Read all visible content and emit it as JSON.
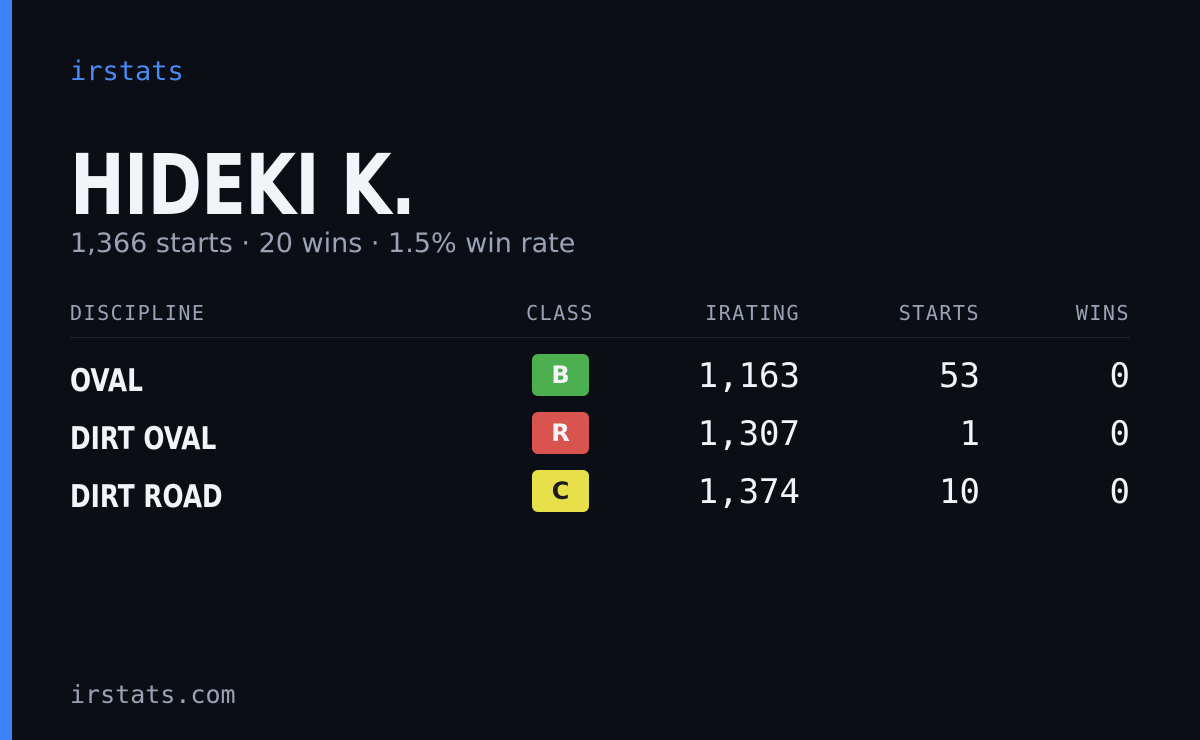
{
  "brand": "irstats",
  "header": {
    "name": "HIDEKI K.",
    "summary": "1,366 starts · 20 wins · 1.5% win rate"
  },
  "table": {
    "columns": [
      "DISCIPLINE",
      "CLASS",
      "IRATING",
      "STARTS",
      "WINS"
    ],
    "rows": [
      {
        "discipline": "OVAL",
        "class": "B",
        "class_color": "#4caf50",
        "class_text": "#f3f4f8",
        "irating": "1,163",
        "starts": "53",
        "wins": "0"
      },
      {
        "discipline": "DIRT OVAL",
        "class": "R",
        "class_color": "#d9534f",
        "class_text": "#f3f4f8",
        "irating": "1,307",
        "starts": "1",
        "wins": "0"
      },
      {
        "discipline": "DIRT ROAD",
        "class": "C",
        "class_color": "#e8e04a",
        "class_text": "#1b1b1b",
        "irating": "1,374",
        "starts": "10",
        "wins": "0"
      }
    ]
  },
  "footer": "irstats.com"
}
